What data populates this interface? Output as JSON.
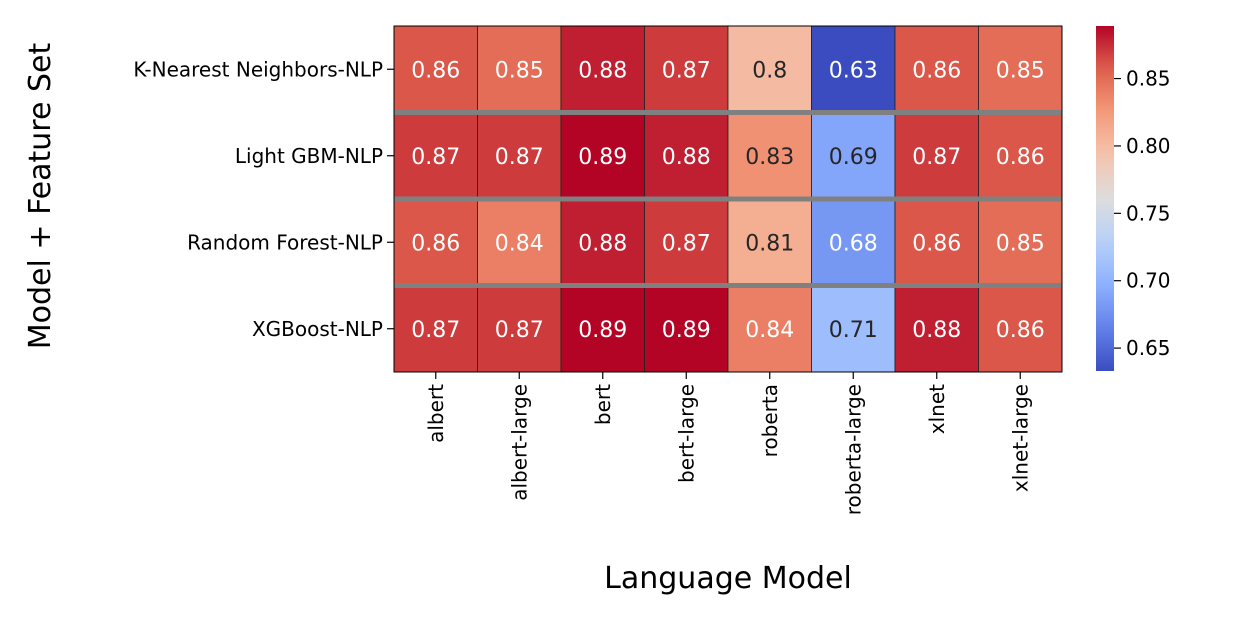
{
  "chart_data": {
    "type": "heatmap",
    "xlabel": "Language Model",
    "ylabel": "Model + Feature Set",
    "x_categories": [
      "albert",
      "albert-large",
      "bert",
      "bert-large",
      "roberta",
      "roberta-large",
      "xlnet",
      "xlnet-large"
    ],
    "y_categories": [
      "K-Nearest Neighbors-NLP",
      "Light GBM-NLP",
      "Random Forest-NLP",
      "XGBoost-NLP"
    ],
    "values": [
      [
        0.86,
        0.85,
        0.88,
        0.87,
        0.8,
        0.63,
        0.86,
        0.85
      ],
      [
        0.87,
        0.87,
        0.89,
        0.88,
        0.83,
        0.69,
        0.87,
        0.86
      ],
      [
        0.86,
        0.84,
        0.88,
        0.87,
        0.81,
        0.68,
        0.86,
        0.85
      ],
      [
        0.87,
        0.87,
        0.89,
        0.89,
        0.84,
        0.71,
        0.88,
        0.86
      ]
    ],
    "value_labels": [
      [
        "0.86",
        "0.85",
        "0.88",
        "0.87",
        "0.8",
        "0.63",
        "0.86",
        "0.85"
      ],
      [
        "0.87",
        "0.87",
        "0.89",
        "0.88",
        "0.83",
        "0.69",
        "0.87",
        "0.86"
      ],
      [
        "0.86",
        "0.84",
        "0.88",
        "0.87",
        "0.81",
        "0.68",
        "0.86",
        "0.85"
      ],
      [
        "0.87",
        "0.87",
        "0.89",
        "0.89",
        "0.84",
        "0.71",
        "0.88",
        "0.86"
      ]
    ],
    "colormap": "coolwarm",
    "colorbar": {
      "vmin": 0.633,
      "vmax": 0.889,
      "ticks": [
        0.65,
        0.7,
        0.75,
        0.8,
        0.85
      ],
      "tick_labels": [
        "0.65",
        "0.70",
        "0.75",
        "0.80",
        "0.85"
      ]
    },
    "row_separator_color": "#808080"
  }
}
